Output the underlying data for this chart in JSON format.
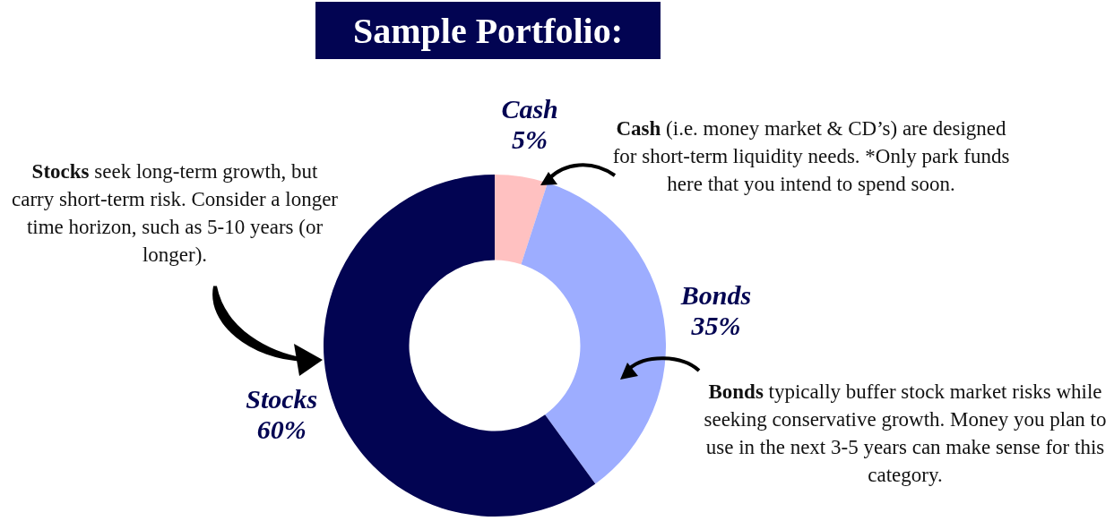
{
  "chart_data": {
    "type": "donut",
    "title": "Sample Portfolio:",
    "categories": [
      "Cash",
      "Bonds",
      "Stocks"
    ],
    "values": [
      5,
      35,
      60
    ],
    "value_labels": [
      "5%",
      "35%",
      "60%"
    ],
    "colors": [
      "#ffc1c1",
      "#9dadff",
      "#020452"
    ],
    "legend": false,
    "annotations": [
      "Cash (i.e. money market & CD’s) are designed for short-term liquidity needs.  *Only park funds here that you intend to spend soon.",
      "Bonds typically buffer stock market risks while seeking conservative growth. Money you plan to use in the next 3-5 years can make sense for this category.",
      "Stocks seek long-term growth, but carry short-term risk. Consider a longer time horizon, such as 5-10 years (or longer)."
    ]
  }
}
